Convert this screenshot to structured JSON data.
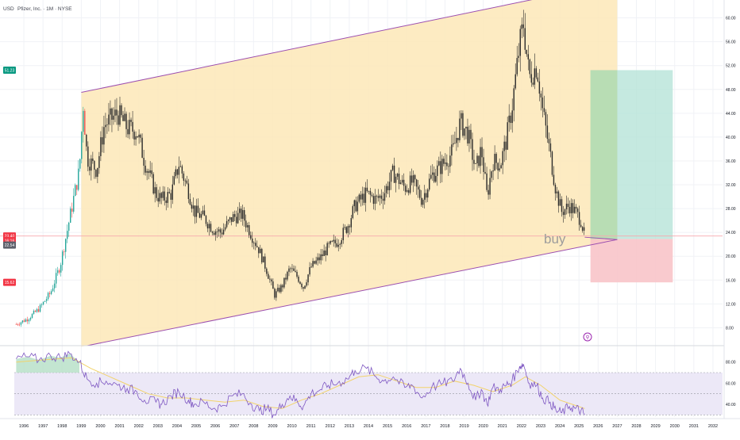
{
  "header": {
    "currency": "USD",
    "title": "Pfizer, Inc. · 1M · NYSE"
  },
  "colors": {
    "up": "#26a69a",
    "down": "#ef5350",
    "candle_dark": "#2b2b2b",
    "channel_fill": "#fde8b7",
    "channel_line": "#9c4fb0",
    "target_zone": "#b7e3d8",
    "target_zone_green": "#b5dcae",
    "stop_zone": "#f8c4c9",
    "rsi_line": "#7e57c2",
    "rsi_ma": "#f2d36b",
    "rsi_band": "#ece8f7",
    "badge_green": "#089981",
    "badge_red": "#f23645"
  },
  "price_axis": {
    "ticks": [
      "60.00",
      "56.00",
      "52.00",
      "48.00",
      "44.00",
      "40.00",
      "36.00",
      "32.00",
      "28.00",
      "24.00",
      "20.00",
      "16.00",
      "12.00",
      "8.00"
    ],
    "badges": [
      {
        "label": "51.23",
        "value": 51.23,
        "color": "#089981"
      },
      {
        "label": "23.40",
        "value": 23.4,
        "color": "#f23645"
      },
      {
        "label": "16:16",
        "value": 22.9,
        "color": "#f23645"
      },
      {
        "label": "22.54",
        "value": 22.54,
        "color": "#5d606b"
      },
      {
        "label": "15.62",
        "value": 15.62,
        "color": "#f23645"
      }
    ]
  },
  "rsi_axis": {
    "ticks": [
      "80.00",
      "60.00",
      "40.00"
    ]
  },
  "time_axis": {
    "ticks": [
      "1996",
      "1997",
      "1998",
      "1999",
      "2000",
      "2001",
      "2002",
      "2003",
      "2004",
      "2005",
      "2006",
      "2007",
      "2008",
      "2009",
      "2010",
      "2011",
      "2012",
      "2013",
      "2014",
      "2015",
      "2016",
      "2017",
      "2018",
      "2019",
      "2020",
      "2021",
      "2022",
      "2023",
      "2024",
      "2025",
      "2026",
      "2027",
      "2028",
      "2029",
      "2030",
      "2031",
      "2032"
    ]
  },
  "annotations": {
    "buy_label": "buy",
    "event_marker": "⚲"
  },
  "chart_data": [
    {
      "type": "candlestick",
      "title": "Pfizer, Inc. · 1M · NYSE",
      "ylabel": "USD",
      "ylim": [
        5.0,
        63.0
      ],
      "xlim": [
        1995.5,
        2032.5
      ],
      "anchor_closes": [
        [
          1995.6,
          8.6
        ],
        [
          1996.2,
          9.5
        ],
        [
          1996.8,
          11.2
        ],
        [
          1997.4,
          13.9
        ],
        [
          1997.9,
          18.5
        ],
        [
          1998.4,
          26.5
        ],
        [
          1998.9,
          34.5
        ],
        [
          1999.1,
          45.5
        ],
        [
          1999.3,
          36.5
        ],
        [
          1999.8,
          34.5
        ],
        [
          2000.2,
          42.0
        ],
        [
          2000.9,
          44.0
        ],
        [
          2001.4,
          41.5
        ],
        [
          2001.9,
          41.0
        ],
        [
          2002.3,
          36.0
        ],
        [
          2002.9,
          30.5
        ],
        [
          2003.2,
          29.5
        ],
        [
          2003.7,
          30.5
        ],
        [
          2004.1,
          35.5
        ],
        [
          2004.6,
          31.0
        ],
        [
          2004.9,
          27.5
        ],
        [
          2005.4,
          26.5
        ],
        [
          2005.9,
          24.5
        ],
        [
          2006.3,
          24.0
        ],
        [
          2006.9,
          26.5
        ],
        [
          2007.4,
          27.0
        ],
        [
          2007.9,
          23.5
        ],
        [
          2008.3,
          21.0
        ],
        [
          2008.7,
          17.5
        ],
        [
          2009.1,
          13.5
        ],
        [
          2009.5,
          15.0
        ],
        [
          2009.9,
          18.0
        ],
        [
          2010.3,
          16.5
        ],
        [
          2010.6,
          14.8
        ],
        [
          2011.0,
          18.2
        ],
        [
          2011.5,
          19.8
        ],
        [
          2011.9,
          21.5
        ],
        [
          2012.4,
          22.5
        ],
        [
          2012.9,
          25.0
        ],
        [
          2013.3,
          28.5
        ],
        [
          2013.9,
          30.5
        ],
        [
          2014.4,
          29.5
        ],
        [
          2014.8,
          30.5
        ],
        [
          2015.3,
          34.0
        ],
        [
          2015.9,
          31.5
        ],
        [
          2016.3,
          32.5
        ],
        [
          2016.8,
          29.5
        ],
        [
          2017.3,
          33.5
        ],
        [
          2017.9,
          35.5
        ],
        [
          2018.4,
          37.5
        ],
        [
          2018.8,
          42.5
        ],
        [
          2019.2,
          40.5
        ],
        [
          2019.6,
          34.5
        ],
        [
          2019.9,
          38.0
        ],
        [
          2020.2,
          30.0
        ],
        [
          2020.5,
          36.0
        ],
        [
          2020.9,
          35.5
        ],
        [
          2021.2,
          39.5
        ],
        [
          2021.5,
          45.0
        ],
        [
          2021.9,
          55.5
        ],
        [
          2022.1,
          59.0
        ],
        [
          2022.4,
          50.0
        ],
        [
          2022.8,
          52.0
        ],
        [
          2023.1,
          44.5
        ],
        [
          2023.5,
          37.0
        ],
        [
          2023.8,
          31.0
        ],
        [
          2024.1,
          27.5
        ],
        [
          2024.5,
          28.5
        ],
        [
          2024.8,
          27.5
        ],
        [
          2025.1,
          26.0
        ],
        [
          2025.3,
          23.4
        ]
      ],
      "channel": {
        "upper": {
          "from": [
            1999.0,
            47.5
          ],
          "to": [
            2027.0,
            66.0
          ]
        },
        "lower": {
          "from": [
            1999.3,
            5.0
          ],
          "to": [
            2027.0,
            22.8
          ]
        },
        "fill_until": 2027.0
      },
      "position": {
        "type": "long",
        "entry": 22.9,
        "target": 51.23,
        "stop": 15.62,
        "from": 2025.6,
        "to": 2029.9,
        "green_until": 2027.0
      },
      "horizontal_levels": [
        23.4
      ]
    },
    {
      "type": "line",
      "title": "RSI",
      "ylim": [
        28.0,
        94.0
      ],
      "bands": [
        30,
        50,
        70
      ],
      "band_fill": [
        30,
        70
      ],
      "series": [
        {
          "values_x_y": [
            [
              1995.6,
              83
            ],
            [
              1996.2,
              85
            ],
            [
              1996.8,
              82
            ],
            [
              1997.4,
              86
            ],
            [
              1997.9,
              84
            ],
            [
              1998.4,
              88
            ],
            [
              1998.9,
              80
            ],
            [
              1999.3,
              64
            ],
            [
              1999.8,
              60
            ],
            [
              2000.3,
              62
            ],
            [
              2000.9,
              58
            ],
            [
              2001.4,
              55
            ],
            [
              2001.9,
              52
            ],
            [
              2002.3,
              44
            ],
            [
              2002.9,
              42
            ],
            [
              2003.2,
              40
            ],
            [
              2003.7,
              48
            ],
            [
              2004.1,
              52
            ],
            [
              2004.6,
              44
            ],
            [
              2004.9,
              40
            ],
            [
              2005.4,
              42
            ],
            [
              2005.9,
              36
            ],
            [
              2006.3,
              38
            ],
            [
              2006.9,
              48
            ],
            [
              2007.4,
              50
            ],
            [
              2007.9,
              40
            ],
            [
              2008.3,
              34
            ],
            [
              2008.7,
              36
            ],
            [
              2009.1,
              30
            ],
            [
              2009.5,
              40
            ],
            [
              2009.9,
              48
            ],
            [
              2010.3,
              42
            ],
            [
              2010.6,
              38
            ],
            [
              2011.0,
              50
            ],
            [
              2011.5,
              54
            ],
            [
              2011.9,
              58
            ],
            [
              2012.4,
              60
            ],
            [
              2012.9,
              64
            ],
            [
              2013.3,
              72
            ],
            [
              2013.9,
              74
            ],
            [
              2014.4,
              66
            ],
            [
              2014.8,
              62
            ],
            [
              2015.3,
              66
            ],
            [
              2015.9,
              56
            ],
            [
              2016.3,
              58
            ],
            [
              2016.8,
              46
            ],
            [
              2017.3,
              56
            ],
            [
              2017.9,
              60
            ],
            [
              2018.4,
              62
            ],
            [
              2018.8,
              74
            ],
            [
              2019.2,
              60
            ],
            [
              2019.6,
              44
            ],
            [
              2019.9,
              54
            ],
            [
              2020.2,
              40
            ],
            [
              2020.5,
              56
            ],
            [
              2020.9,
              54
            ],
            [
              2021.2,
              58
            ],
            [
              2021.5,
              62
            ],
            [
              2021.9,
              76
            ],
            [
              2022.1,
              78
            ],
            [
              2022.4,
              60
            ],
            [
              2022.8,
              58
            ],
            [
              2023.1,
              46
            ],
            [
              2023.5,
              42
            ],
            [
              2023.8,
              34
            ],
            [
              2024.1,
              32
            ],
            [
              2024.5,
              38
            ],
            [
              2024.8,
              36
            ],
            [
              2025.1,
              34
            ],
            [
              2025.3,
              30
            ]
          ]
        },
        {
          "values_x_y": [
            [
              1995.6,
              80
            ],
            [
              1997.0,
              82
            ],
            [
              1998.5,
              84
            ],
            [
              1999.5,
              74
            ],
            [
              2000.5,
              66
            ],
            [
              2001.5,
              58
            ],
            [
              2002.5,
              50
            ],
            [
              2003.5,
              46
            ],
            [
              2004.5,
              46
            ],
            [
              2005.5,
              44
            ],
            [
              2006.5,
              42
            ],
            [
              2007.5,
              44
            ],
            [
              2008.5,
              38
            ],
            [
              2009.5,
              36
            ],
            [
              2010.5,
              44
            ],
            [
              2011.5,
              50
            ],
            [
              2012.5,
              58
            ],
            [
              2013.5,
              66
            ],
            [
              2014.5,
              68
            ],
            [
              2015.5,
              62
            ],
            [
              2016.5,
              56
            ],
            [
              2017.5,
              56
            ],
            [
              2018.5,
              62
            ],
            [
              2019.5,
              58
            ],
            [
              2020.5,
              52
            ],
            [
              2021.5,
              58
            ],
            [
              2022.2,
              66
            ],
            [
              2023.0,
              58
            ],
            [
              2024.0,
              44
            ],
            [
              2025.3,
              36
            ]
          ]
        }
      ]
    }
  ]
}
